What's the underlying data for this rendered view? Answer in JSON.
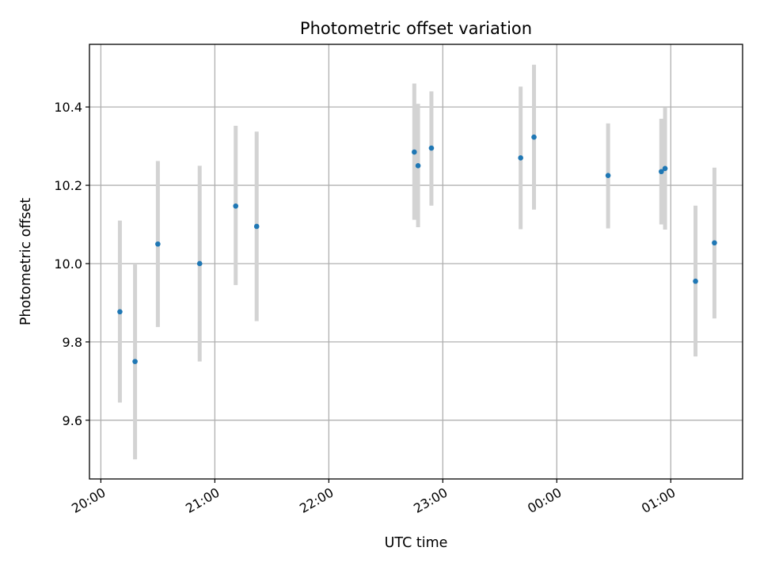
{
  "chart_data": {
    "type": "scatter",
    "title": "Photometric offset variation",
    "xlabel": "UTC time",
    "ylabel": "Photometric offset",
    "x_unit": "hours",
    "xlim": [
      19.9,
      25.63
    ],
    "ylim": [
      9.45,
      10.56
    ],
    "x_ticks": [
      {
        "value": 20,
        "label": "20:00"
      },
      {
        "value": 21,
        "label": "21:00"
      },
      {
        "value": 22,
        "label": "22:00"
      },
      {
        "value": 23,
        "label": "23:00"
      },
      {
        "value": 24,
        "label": "00:00"
      },
      {
        "value": 25,
        "label": "01:00"
      }
    ],
    "y_ticks": [
      {
        "value": 9.6,
        "label": "9.6"
      },
      {
        "value": 9.8,
        "label": "9.8"
      },
      {
        "value": 10.0,
        "label": "10.0"
      },
      {
        "value": 10.2,
        "label": "10.2"
      },
      {
        "value": 10.4,
        "label": "10.4"
      }
    ],
    "grid": true,
    "point_color": "#1f77b4",
    "errorbar_color": "#d3d3d3",
    "points": [
      {
        "x": 20.167,
        "y": 9.877,
        "low": 9.645,
        "high": 10.11
      },
      {
        "x": 20.3,
        "y": 9.75,
        "low": 9.5,
        "high": 10.0
      },
      {
        "x": 20.5,
        "y": 10.05,
        "low": 9.838,
        "high": 10.262
      },
      {
        "x": 20.867,
        "y": 10.0,
        "low": 9.75,
        "high": 10.25
      },
      {
        "x": 21.183,
        "y": 10.147,
        "low": 9.945,
        "high": 10.352
      },
      {
        "x": 21.367,
        "y": 10.095,
        "low": 9.853,
        "high": 10.337
      },
      {
        "x": 22.75,
        "y": 10.285,
        "low": 10.112,
        "high": 10.46
      },
      {
        "x": 22.783,
        "y": 10.25,
        "low": 10.093,
        "high": 10.408
      },
      {
        "x": 22.9,
        "y": 10.295,
        "low": 10.148,
        "high": 10.44
      },
      {
        "x": 23.683,
        "y": 10.27,
        "low": 10.088,
        "high": 10.452
      },
      {
        "x": 23.8,
        "y": 10.323,
        "low": 10.138,
        "high": 10.508
      },
      {
        "x": 24.45,
        "y": 10.225,
        "low": 10.09,
        "high": 10.358
      },
      {
        "x": 24.917,
        "y": 10.235,
        "low": 10.1,
        "high": 10.37
      },
      {
        "x": 24.95,
        "y": 10.243,
        "low": 10.087,
        "high": 10.398
      },
      {
        "x": 25.217,
        "y": 9.955,
        "low": 9.763,
        "high": 10.148
      },
      {
        "x": 25.383,
        "y": 10.053,
        "low": 9.86,
        "high": 10.245
      }
    ]
  }
}
